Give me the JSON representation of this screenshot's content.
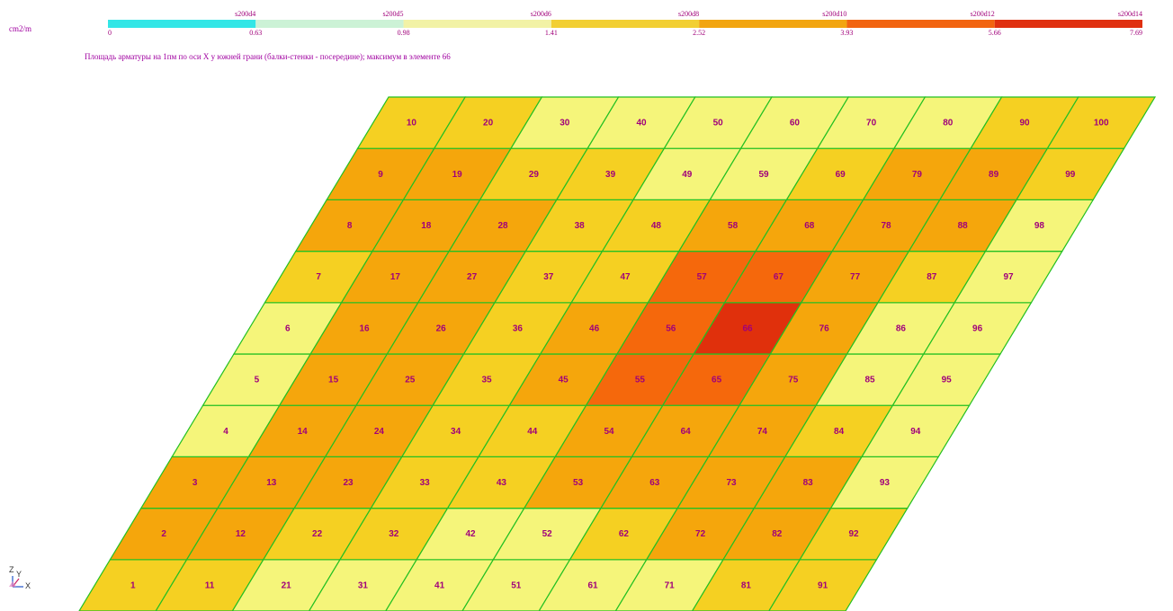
{
  "unit": "cm2/m",
  "caption": "Площадь арматуры на 1пм по оси X у южней грани (балки-стенки - посередине); максимум в элементе 66",
  "legend": {
    "bands": [
      {
        "from": 0,
        "to": 0.63,
        "color": "#33e6e6",
        "label": "s200d4"
      },
      {
        "from": 0.63,
        "to": 0.98,
        "color": "#ccf2d6",
        "label": "s200d5"
      },
      {
        "from": 0.98,
        "to": 1.41,
        "color": "#f2f2a6",
        "label": "s200d6"
      },
      {
        "from": 1.41,
        "to": 2.52,
        "color": "#f2cf33",
        "label": "s200d8"
      },
      {
        "from": 2.52,
        "to": 3.93,
        "color": "#f2a510",
        "label": "s200d10"
      },
      {
        "from": 3.93,
        "to": 5.66,
        "color": "#f26410",
        "label": "s200d12"
      },
      {
        "from": 5.66,
        "to": 7.69,
        "color": "#e03010",
        "label": "s200d14"
      }
    ],
    "tick_values": [
      "0",
      "0.63",
      "0.98",
      "1.41",
      "2.52",
      "3.93",
      "5.66",
      "7.69"
    ]
  },
  "colors": {
    "c": "#33e6e6",
    "l": "#f5f57a",
    "y": "#f5d022",
    "o": "#f5a60c",
    "r": "#f5680c",
    "d": "#e0300c",
    "grid_line": "#22c022",
    "label_text": "#a0007a"
  },
  "elements": [
    {
      "id": "1",
      "band": "y"
    },
    {
      "id": "2",
      "band": "o"
    },
    {
      "id": "3",
      "band": "o"
    },
    {
      "id": "4",
      "band": "l"
    },
    {
      "id": "5",
      "band": "l"
    },
    {
      "id": "6",
      "band": "l"
    },
    {
      "id": "7",
      "band": "y"
    },
    {
      "id": "8",
      "band": "o"
    },
    {
      "id": "9",
      "band": "o"
    },
    {
      "id": "10",
      "band": "y"
    },
    {
      "id": "11",
      "band": "y"
    },
    {
      "id": "12",
      "band": "o"
    },
    {
      "id": "13",
      "band": "o"
    },
    {
      "id": "14",
      "band": "o"
    },
    {
      "id": "15",
      "band": "o"
    },
    {
      "id": "16",
      "band": "o"
    },
    {
      "id": "17",
      "band": "o"
    },
    {
      "id": "18",
      "band": "o"
    },
    {
      "id": "19",
      "band": "o"
    },
    {
      "id": "20",
      "band": "y"
    },
    {
      "id": "21",
      "band": "l"
    },
    {
      "id": "22",
      "band": "y"
    },
    {
      "id": "23",
      "band": "o"
    },
    {
      "id": "24",
      "band": "o"
    },
    {
      "id": "25",
      "band": "o"
    },
    {
      "id": "26",
      "band": "o"
    },
    {
      "id": "27",
      "band": "o"
    },
    {
      "id": "28",
      "band": "o"
    },
    {
      "id": "29",
      "band": "y"
    },
    {
      "id": "30",
      "band": "l"
    },
    {
      "id": "31",
      "band": "l"
    },
    {
      "id": "32",
      "band": "y"
    },
    {
      "id": "33",
      "band": "y"
    },
    {
      "id": "34",
      "band": "y"
    },
    {
      "id": "35",
      "band": "y"
    },
    {
      "id": "36",
      "band": "y"
    },
    {
      "id": "37",
      "band": "y"
    },
    {
      "id": "38",
      "band": "y"
    },
    {
      "id": "39",
      "band": "y"
    },
    {
      "id": "40",
      "band": "l"
    },
    {
      "id": "41",
      "band": "l"
    },
    {
      "id": "42",
      "band": "l"
    },
    {
      "id": "43",
      "band": "y"
    },
    {
      "id": "44",
      "band": "y"
    },
    {
      "id": "45",
      "band": "o"
    },
    {
      "id": "46",
      "band": "o"
    },
    {
      "id": "47",
      "band": "y"
    },
    {
      "id": "48",
      "band": "y"
    },
    {
      "id": "49",
      "band": "l"
    },
    {
      "id": "50",
      "band": "l"
    },
    {
      "id": "51",
      "band": "l"
    },
    {
      "id": "52",
      "band": "l"
    },
    {
      "id": "53",
      "band": "o"
    },
    {
      "id": "54",
      "band": "o"
    },
    {
      "id": "55",
      "band": "r"
    },
    {
      "id": "56",
      "band": "r"
    },
    {
      "id": "57",
      "band": "r"
    },
    {
      "id": "58",
      "band": "o"
    },
    {
      "id": "59",
      "band": "l"
    },
    {
      "id": "60",
      "band": "l"
    },
    {
      "id": "61",
      "band": "l"
    },
    {
      "id": "62",
      "band": "y"
    },
    {
      "id": "63",
      "band": "o"
    },
    {
      "id": "64",
      "band": "o"
    },
    {
      "id": "65",
      "band": "r"
    },
    {
      "id": "66",
      "band": "d"
    },
    {
      "id": "67",
      "band": "r"
    },
    {
      "id": "68",
      "band": "o"
    },
    {
      "id": "69",
      "band": "y"
    },
    {
      "id": "70",
      "band": "l"
    },
    {
      "id": "71",
      "band": "l"
    },
    {
      "id": "72",
      "band": "o"
    },
    {
      "id": "73",
      "band": "o"
    },
    {
      "id": "74",
      "band": "o"
    },
    {
      "id": "75",
      "band": "o"
    },
    {
      "id": "76",
      "band": "o"
    },
    {
      "id": "77",
      "band": "o"
    },
    {
      "id": "78",
      "band": "o"
    },
    {
      "id": "79",
      "band": "o"
    },
    {
      "id": "80",
      "band": "l"
    },
    {
      "id": "81",
      "band": "y"
    },
    {
      "id": "82",
      "band": "o"
    },
    {
      "id": "83",
      "band": "o"
    },
    {
      "id": "84",
      "band": "y"
    },
    {
      "id": "85",
      "band": "l"
    },
    {
      "id": "86",
      "band": "l"
    },
    {
      "id": "87",
      "band": "y"
    },
    {
      "id": "88",
      "band": "o"
    },
    {
      "id": "89",
      "band": "o"
    },
    {
      "id": "90",
      "band": "y"
    },
    {
      "id": "91",
      "band": "y"
    },
    {
      "id": "92",
      "band": "y"
    },
    {
      "id": "93",
      "band": "l"
    },
    {
      "id": "94",
      "band": "l"
    },
    {
      "id": "95",
      "band": "l"
    },
    {
      "id": "96",
      "band": "l"
    },
    {
      "id": "97",
      "band": "l"
    },
    {
      "id": "98",
      "band": "l"
    },
    {
      "id": "99",
      "band": "y"
    },
    {
      "id": "100",
      "band": "y"
    }
  ],
  "axes_triad": {
    "z": "Z",
    "y": "Y",
    "x": "X"
  }
}
